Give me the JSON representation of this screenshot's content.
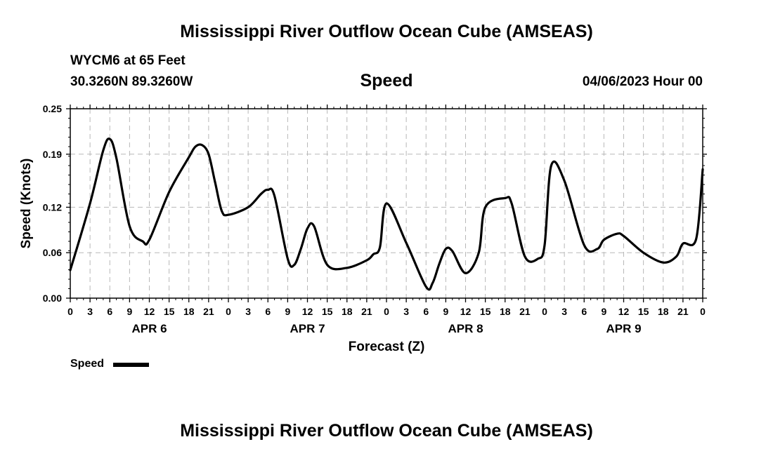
{
  "header": {
    "title": "Mississippi River Outflow Ocean Cube (AMSEAS)",
    "station": "WYCM6 at 65 Feet",
    "location": "30.3260N  89.3260W",
    "variable": "Speed",
    "datetime": "04/06/2023 Hour 00"
  },
  "legend": {
    "label": "Speed",
    "color": "#000000"
  },
  "footer": {
    "title": "Mississippi River Outflow Ocean Cube (AMSEAS)"
  },
  "chart_data": {
    "type": "line",
    "title": "Speed",
    "xlabel": "Forecast (Z)",
    "ylabel": "Speed (Knots)",
    "xlim": [
      0,
      96
    ],
    "ylim": [
      0,
      0.25
    ],
    "yticks": [
      0.0,
      0.06,
      0.12,
      0.19,
      0.25
    ],
    "ytick_labels": [
      "0.00",
      "0.06",
      "0.12",
      "0.19",
      "0.25"
    ],
    "xticks": [
      0,
      3,
      6,
      9,
      12,
      15,
      18,
      21,
      24,
      27,
      30,
      33,
      36,
      39,
      42,
      45,
      48,
      51,
      54,
      57,
      60,
      63,
      66,
      69,
      72,
      75,
      78,
      81,
      84,
      87,
      90,
      93,
      96
    ],
    "xtick_labels": [
      "0",
      "3",
      "6",
      "9",
      "12",
      "15",
      "18",
      "21",
      "0",
      "3",
      "6",
      "9",
      "12",
      "15",
      "18",
      "21",
      "0",
      "3",
      "6",
      "9",
      "12",
      "15",
      "18",
      "21",
      "0",
      "3",
      "6",
      "9",
      "12",
      "15",
      "18",
      "21",
      "0"
    ],
    "day_labels": [
      {
        "label": "APR 6",
        "hour": 12
      },
      {
        "label": "APR 7",
        "hour": 36
      },
      {
        "label": "APR 8",
        "hour": 60
      },
      {
        "label": "APR 9",
        "hour": 84
      }
    ],
    "grid": true,
    "series": [
      {
        "name": "Speed",
        "color": "#000000",
        "x": [
          0,
          3,
          5,
          6,
          7,
          9,
          11,
          12,
          15,
          18,
          19,
          20,
          21,
          22,
          23,
          24,
          27,
          29,
          30,
          31,
          33,
          34,
          35,
          36,
          37,
          39,
          42,
          45,
          46,
          47,
          48,
          51,
          54,
          55,
          56,
          57,
          58,
          60,
          62,
          63,
          66,
          67,
          69,
          71,
          72,
          73,
          75,
          78,
          80,
          81,
          83,
          84,
          87,
          90,
          92,
          93,
          95,
          96
        ],
        "y": [
          0.037,
          0.125,
          0.195,
          0.21,
          0.185,
          0.095,
          0.075,
          0.077,
          0.14,
          0.186,
          0.2,
          0.202,
          0.19,
          0.152,
          0.115,
          0.11,
          0.12,
          0.138,
          0.143,
          0.135,
          0.052,
          0.044,
          0.065,
          0.092,
          0.095,
          0.044,
          0.04,
          0.05,
          0.058,
          0.067,
          0.125,
          0.073,
          0.015,
          0.02,
          0.045,
          0.065,
          0.062,
          0.033,
          0.06,
          0.12,
          0.132,
          0.125,
          0.055,
          0.052,
          0.07,
          0.175,
          0.155,
          0.07,
          0.065,
          0.077,
          0.085,
          0.082,
          0.06,
          0.047,
          0.055,
          0.072,
          0.078,
          0.17
        ]
      }
    ]
  }
}
